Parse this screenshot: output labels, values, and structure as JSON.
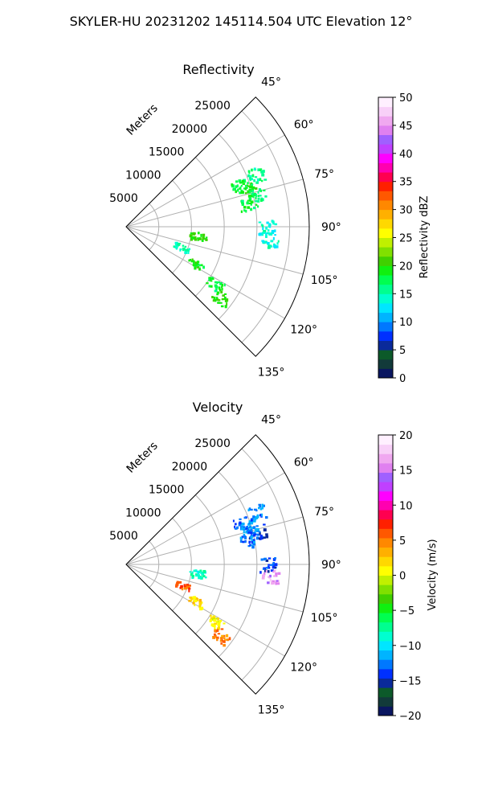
{
  "figure_title": "SKYLER-HU  20231202  145114.504 UTC Elevation 12°",
  "chart_data": [
    {
      "type": "polar-sector-scan",
      "title": "Reflectivity",
      "radial_axis_label": "Meters",
      "radial_ticks": [
        5000,
        10000,
        15000,
        20000,
        25000
      ],
      "radial_tick_labels": [
        "5000",
        "10000",
        "15000",
        "20000",
        "25000"
      ],
      "angle_ticks_deg": [
        45,
        60,
        75,
        90,
        105,
        120,
        135
      ],
      "angle_tick_labels": [
        "45°",
        "60°",
        "75°",
        "90°",
        "105°",
        "120°",
        "135°"
      ],
      "colorbar": {
        "label": "Reflectivity dBZ",
        "min": 0,
        "max": 50,
        "ticks": [
          0,
          5,
          10,
          15,
          20,
          25,
          30,
          35,
          40,
          45,
          50
        ],
        "tick_labels": [
          "0",
          "5",
          "10",
          "15",
          "20",
          "25",
          "30",
          "35",
          "40",
          "45",
          "50"
        ],
        "colors": [
          "#0a1660",
          "#123a3a",
          "#0c5a2a",
          "#0a2a9a",
          "#0030ff",
          "#0078ff",
          "#00b4ff",
          "#00e6ff",
          "#00ffd0",
          "#00ff90",
          "#00ff50",
          "#10f010",
          "#40d000",
          "#80e000",
          "#c0f000",
          "#ffff00",
          "#ffd800",
          "#ffb000",
          "#ff8800",
          "#ff5800",
          "#ff2000",
          "#ff0050",
          "#ff00b0",
          "#ff00ff",
          "#c040ff",
          "#a060ff",
          "#e080f0",
          "#f0a8f0",
          "#f8d0f8",
          "#fff0ff"
        ]
      },
      "echoes": [
        {
          "az": 70,
          "r": 18500,
          "value": 18
        },
        {
          "az": 73,
          "r": 19500,
          "value": 19
        },
        {
          "az": 76,
          "r": 20500,
          "value": 17
        },
        {
          "az": 68,
          "r": 21500,
          "value": 16
        },
        {
          "az": 79,
          "r": 19000,
          "value": 18
        },
        {
          "az": 90,
          "r": 21500,
          "value": 14
        },
        {
          "az": 95,
          "r": 22000,
          "value": 14
        },
        {
          "az": 97,
          "r": 11000,
          "value": 20
        },
        {
          "az": 110,
          "r": 9000,
          "value": 15
        },
        {
          "az": 118,
          "r": 12000,
          "value": 19
        },
        {
          "az": 123,
          "r": 16000,
          "value": 18
        },
        {
          "az": 127,
          "r": 18000,
          "value": 20
        }
      ]
    },
    {
      "type": "polar-sector-scan",
      "title": "Velocity",
      "radial_axis_label": "Meters",
      "radial_ticks": [
        5000,
        10000,
        15000,
        20000,
        25000
      ],
      "radial_tick_labels": [
        "5000",
        "10000",
        "15000",
        "20000",
        "25000"
      ],
      "angle_ticks_deg": [
        45,
        60,
        75,
        90,
        105,
        120,
        135
      ],
      "angle_tick_labels": [
        "45°",
        "60°",
        "75°",
        "90°",
        "105°",
        "120°",
        "135°"
      ],
      "colorbar": {
        "label": "Velocity (m/s)",
        "min": -20,
        "max": 20,
        "ticks": [
          -20,
          -15,
          -10,
          -5,
          0,
          5,
          10,
          15,
          20
        ],
        "tick_labels": [
          "−20",
          "−15",
          "−10",
          "−5",
          "0",
          "5",
          "10",
          "15",
          "20"
        ],
        "colors": [
          "#0a1660",
          "#123a3a",
          "#0c5a2a",
          "#0a2a9a",
          "#0030ff",
          "#0078ff",
          "#00b4ff",
          "#00e6ff",
          "#00ffd0",
          "#00ff90",
          "#00ff50",
          "#10f010",
          "#40d000",
          "#80e000",
          "#c0f000",
          "#ffff00",
          "#ffd800",
          "#ffb000",
          "#ff8800",
          "#ff5800",
          "#ff2000",
          "#ff0050",
          "#ff00b0",
          "#ff00ff",
          "#c040ff",
          "#a060ff",
          "#e080f0",
          "#f0a8f0",
          "#f8d0f8",
          "#fff0ff"
        ]
      },
      "echoes": [
        {
          "az": 70,
          "r": 18500,
          "value": -13
        },
        {
          "az": 73,
          "r": 19500,
          "value": -12
        },
        {
          "az": 76,
          "r": 20500,
          "value": -14
        },
        {
          "az": 68,
          "r": 21500,
          "value": -12
        },
        {
          "az": 79,
          "r": 19000,
          "value": -13
        },
        {
          "az": 90,
          "r": 21500,
          "value": -14
        },
        {
          "az": 95,
          "r": 22000,
          "value": 16
        },
        {
          "az": 97,
          "r": 11000,
          "value": -8
        },
        {
          "az": 110,
          "r": 9000,
          "value": 6
        },
        {
          "az": 118,
          "r": 12000,
          "value": 2
        },
        {
          "az": 123,
          "r": 16000,
          "value": 1
        },
        {
          "az": 127,
          "r": 18000,
          "value": 5
        }
      ]
    }
  ]
}
